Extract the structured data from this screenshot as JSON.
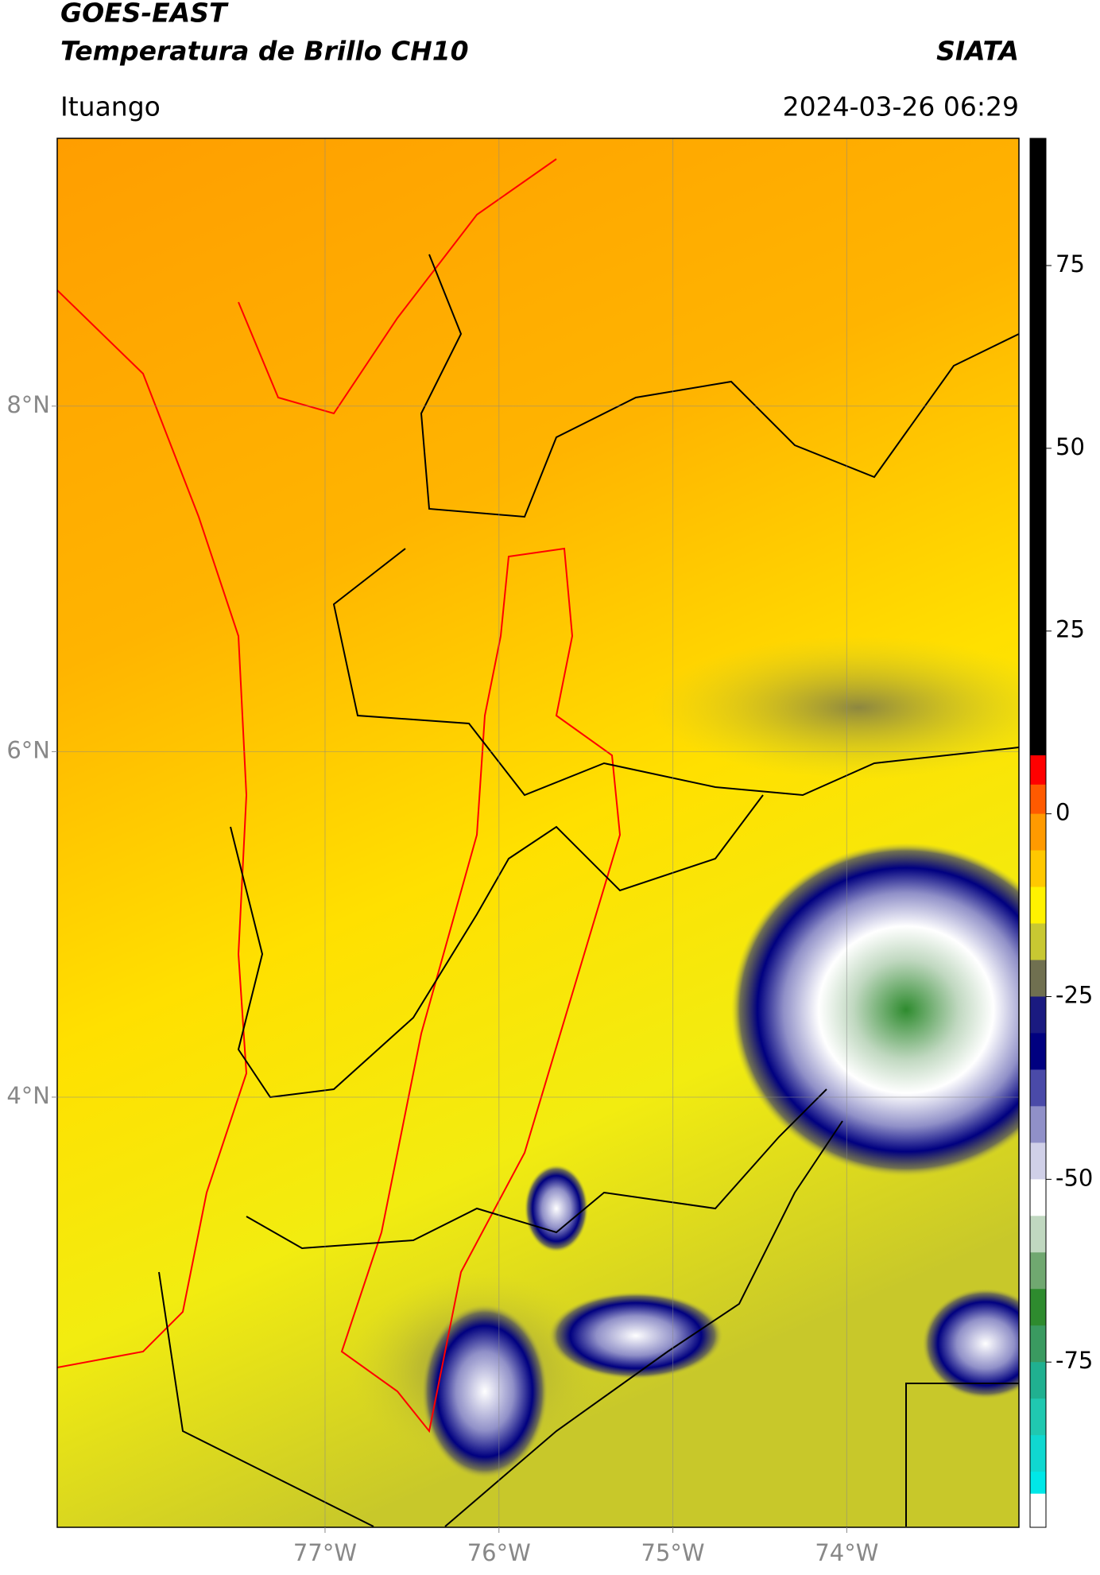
{
  "header": {
    "title": "GOES-EAST",
    "subtitle": "Temperatura de Brillo CH10",
    "source": "SIATA",
    "location": "Ituango",
    "datetime": "2024-03-26 06:29"
  },
  "map": {
    "lat_range": [
      1.51,
      9.55
    ],
    "lon_range": [
      -78.54,
      -73.01
    ],
    "lat_ticks": [
      {
        "value": 8,
        "label": "8°N"
      },
      {
        "value": 6,
        "label": "6°N"
      },
      {
        "value": 4,
        "label": "4°N"
      }
    ],
    "lon_ticks": [
      {
        "value": -77,
        "label": "77°W"
      },
      {
        "value": -76,
        "label": "76°W"
      },
      {
        "value": -75,
        "label": "75°W"
      },
      {
        "value": -74,
        "label": "74°W"
      }
    ],
    "grid": true
  },
  "colorbar": {
    "lim": [
      -97.6,
      92.4
    ],
    "ticks": [
      75,
      50,
      25,
      0,
      -25,
      -50,
      -75
    ],
    "segments": [
      {
        "from": 8,
        "to": 92.4,
        "color": "#000000"
      },
      {
        "from": 4,
        "to": 8,
        "color": "#ff0000"
      },
      {
        "from": 0,
        "to": 4,
        "color": "#ff5a00"
      },
      {
        "from": -5,
        "to": 0,
        "color": "#ff9a00"
      },
      {
        "from": -10,
        "to": -5,
        "color": "#ffc800"
      },
      {
        "from": -15,
        "to": -10,
        "color": "#fff200"
      },
      {
        "from": -20,
        "to": -15,
        "color": "#c8c832"
      },
      {
        "from": -25,
        "to": -20,
        "color": "#707050"
      },
      {
        "from": -30,
        "to": -25,
        "color": "#1a1a80"
      },
      {
        "from": -35,
        "to": -30,
        "color": "#000080"
      },
      {
        "from": -40,
        "to": -35,
        "color": "#4a4aa8"
      },
      {
        "from": -45,
        "to": -40,
        "color": "#9090c8"
      },
      {
        "from": -50,
        "to": -45,
        "color": "#d0d0e8"
      },
      {
        "from": -55,
        "to": -50,
        "color": "#ffffff"
      },
      {
        "from": -60,
        "to": -55,
        "color": "#c0d8c0"
      },
      {
        "from": -65,
        "to": -60,
        "color": "#70a870"
      },
      {
        "from": -70,
        "to": -65,
        "color": "#2e8b2e"
      },
      {
        "from": -75,
        "to": -70,
        "color": "#3a9a60"
      },
      {
        "from": -80,
        "to": -75,
        "color": "#20b090"
      },
      {
        "from": -85,
        "to": -80,
        "color": "#20c8b0"
      },
      {
        "from": -90,
        "to": -85,
        "color": "#10d8d0"
      },
      {
        "from": -93,
        "to": -90,
        "color": "#00e8e8"
      },
      {
        "from": -97.6,
        "to": -93,
        "color": "#ffffff"
      }
    ]
  }
}
